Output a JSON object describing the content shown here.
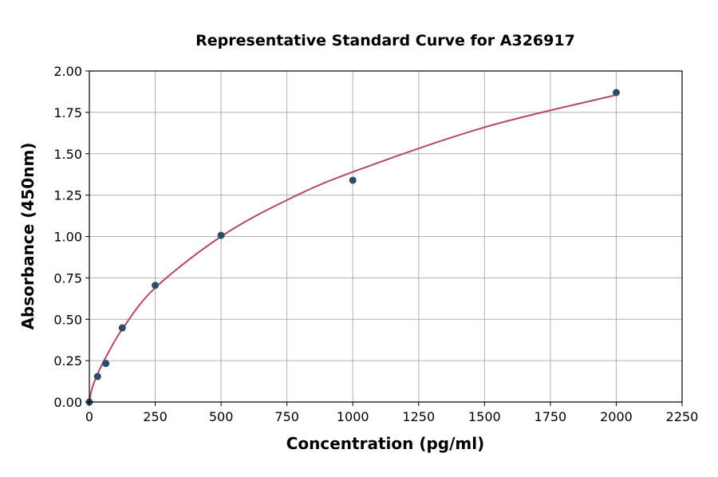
{
  "chart_data": {
    "type": "scatter",
    "title": "Representative Standard Curve for A326917",
    "xlabel": "Concentration (pg/ml)",
    "ylabel": "Absorbance (450nm)",
    "xlim": [
      0,
      2250
    ],
    "ylim": [
      0,
      2.0
    ],
    "grid": true,
    "x_ticks": [
      "0",
      "250",
      "500",
      "750",
      "1000",
      "1250",
      "1500",
      "1750",
      "2000",
      "2250"
    ],
    "y_ticks": [
      "0.00",
      "0.25",
      "0.50",
      "0.75",
      "1.00",
      "1.25",
      "1.50",
      "1.75",
      "2.00"
    ],
    "points": {
      "x": [
        0,
        31.25,
        62.5,
        125,
        250,
        500,
        1000,
        2000
      ],
      "y": [
        0.0,
        0.154,
        0.233,
        0.448,
        0.705,
        1.007,
        1.34,
        1.87
      ],
      "color": "#2d4c6b"
    },
    "fit_curve": {
      "x": [
        0,
        10,
        31.25,
        62.5,
        125,
        250,
        500,
        750,
        1000,
        1500,
        2000
      ],
      "y": [
        0.0,
        0.08,
        0.17,
        0.27,
        0.44,
        0.69,
        1.0,
        1.22,
        1.39,
        1.66,
        1.855
      ],
      "color": "#b5476b"
    }
  }
}
